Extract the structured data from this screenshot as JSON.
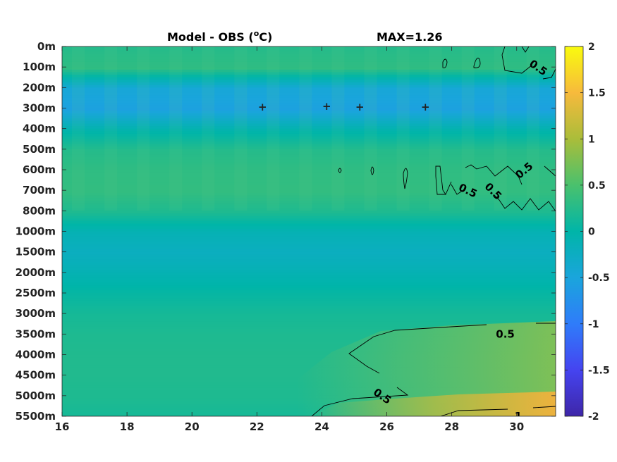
{
  "chart_data": {
    "type": "heatmap",
    "title": "Model - OBS (",
    "title_unit_sup": "o",
    "title_unit_tail": "C)",
    "max_label": "MAX=1.26",
    "x_ticks": [
      16,
      18,
      20,
      22,
      24,
      26,
      28,
      30
    ],
    "xlim": [
      16,
      31.2
    ],
    "y_ticks": [
      "0m",
      "100m",
      "200m",
      "300m",
      "400m",
      "500m",
      "600m",
      "700m",
      "800m",
      "1000m",
      "1500m",
      "2000m",
      "2500m",
      "3000m",
      "3500m",
      "4000m",
      "4500m",
      "5000m",
      "5500m"
    ],
    "colorbar": {
      "range": [
        -2,
        2
      ],
      "ticks": [
        {
          "value": 2,
          "label": "2"
        },
        {
          "value": 1.5,
          "label": "1.5"
        },
        {
          "value": 1,
          "label": "1"
        },
        {
          "value": 0.5,
          "label": "0.5"
        },
        {
          "value": 0,
          "label": "0"
        },
        {
          "value": -0.5,
          "label": "-0.5"
        },
        {
          "value": -1,
          "label": "-1"
        },
        {
          "value": -1.5,
          "label": "-1.5"
        },
        {
          "value": -2,
          "label": "-2"
        }
      ],
      "colormap": "parula"
    },
    "depth_profile": [
      {
        "depth": "0m",
        "value": 0.25
      },
      {
        "depth": "100m",
        "value": 0.32
      },
      {
        "depth": "200m",
        "value": -0.45
      },
      {
        "depth": "300m",
        "value": -0.55
      },
      {
        "depth": "400m",
        "value": -0.05
      },
      {
        "depth": "500m",
        "value": 0.25
      },
      {
        "depth": "600m",
        "value": 0.32
      },
      {
        "depth": "700m",
        "value": 0.34
      },
      {
        "depth": "800m",
        "value": 0.2
      },
      {
        "depth": "1000m",
        "value": -0.12
      },
      {
        "depth": "1500m",
        "value": -0.22
      },
      {
        "depth": "2000m",
        "value": -0.1
      },
      {
        "depth": "2500m",
        "value": 0.05
      },
      {
        "depth": "3000m",
        "value": 0.15
      },
      {
        "depth": "3500m",
        "value": 0.2
      },
      {
        "depth": "4000m",
        "value": 0.22
      },
      {
        "depth": "4500m",
        "value": 0.22
      },
      {
        "depth": "5000m",
        "value": 0.2
      },
      {
        "depth": "5500m",
        "value": 0.15
      }
    ],
    "contour_labels": [
      {
        "text": "0.5",
        "x": 30.6,
        "depth": "100m"
      },
      {
        "text": "0.5",
        "x": 30.3,
        "depth": "600m"
      },
      {
        "text": "0.5",
        "x": 28.45,
        "depth": "700m"
      },
      {
        "text": "0.5",
        "x": 29.2,
        "depth": "700m"
      },
      {
        "text": "0.5",
        "x": 29.65,
        "depth": "3500m"
      },
      {
        "text": "0.5",
        "x": 25.8,
        "depth": "5000m"
      },
      {
        "text": "1",
        "x": 30.05,
        "depth": "5500m"
      }
    ],
    "contour_levels": [
      0.5,
      1
    ]
  }
}
